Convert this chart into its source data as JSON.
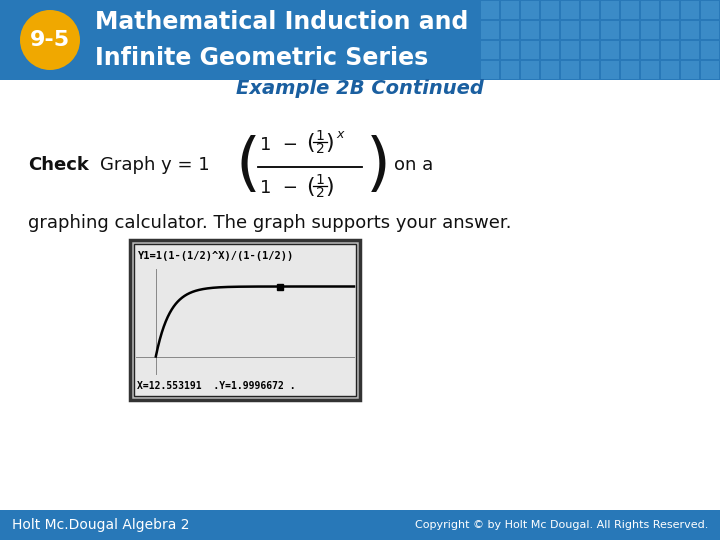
{
  "header_bg_color": "#2878b8",
  "header_text_color": "#ffffff",
  "badge_color": "#f0a800",
  "badge_text": "9-5",
  "badge_text_color": "#ffffff",
  "title_text": "Example 2B Continued",
  "title_color": "#1a5fa0",
  "body_bg": "#ffffff",
  "body_text2": "graphing calculator. The graph supports your answer.",
  "footer_bg": "#2878b8",
  "footer_left": "Holt Mc.Dougal Algebra 2",
  "footer_right": "Copyright © by Holt Mc Dougal. All Rights Reserved.",
  "footer_text_color": "#ffffff",
  "calc_screen_text_top": "Y1=1(1-(1/2)^X)/(1-(1/2))",
  "calc_screen_text_bot": "X=12.553191  .Y=1.9996672 .",
  "header_grid_color": "#5aaae0"
}
